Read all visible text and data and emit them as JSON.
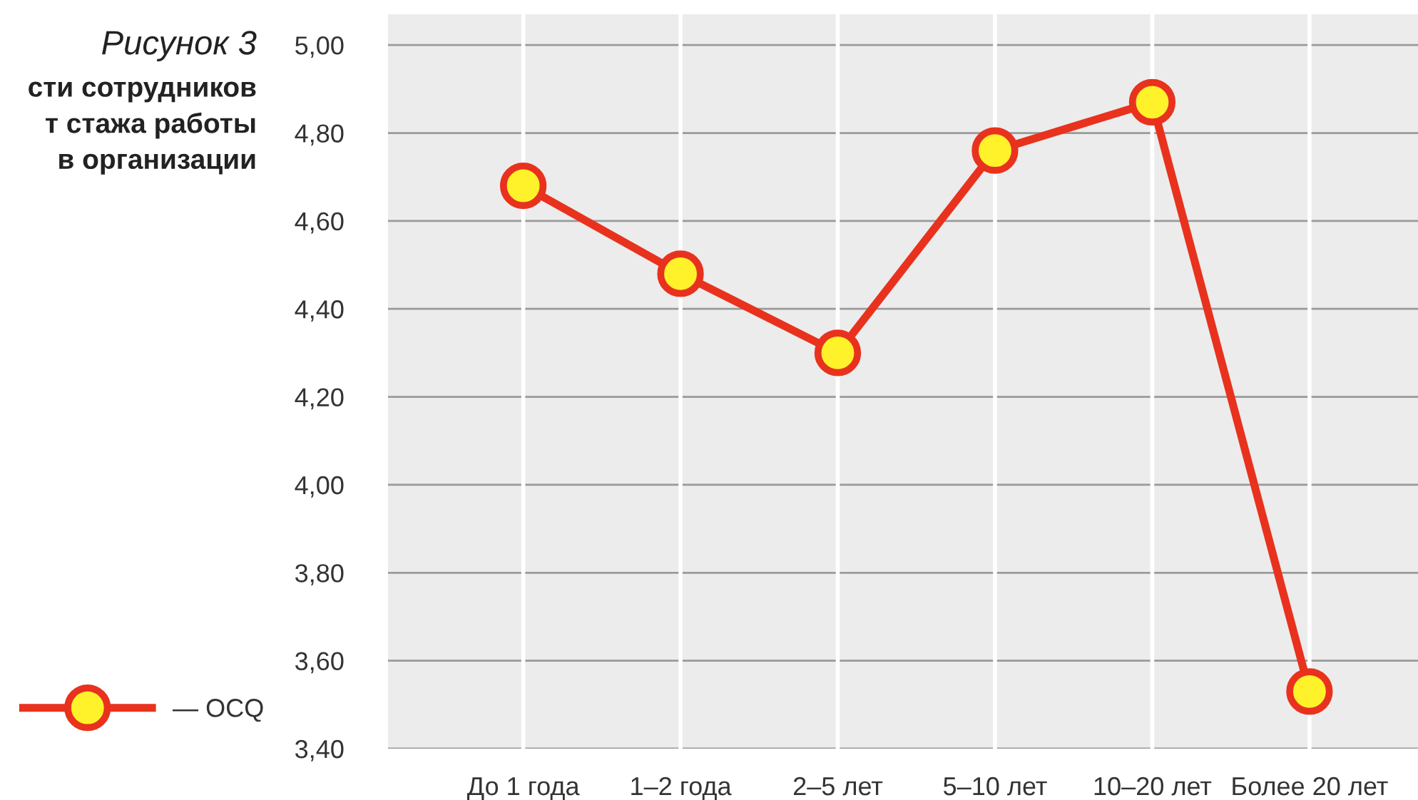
{
  "chart_data": {
    "type": "line",
    "title": "Рисунок 3",
    "subtitle": "сти сотрудников\nт стажа работы\nв организации",
    "categories": [
      "До 1 года",
      "1–2 года",
      "2–5 лет",
      "5–10 лет",
      "10–20 лет",
      "Более 20 лет"
    ],
    "series": [
      {
        "name": "— OCQ",
        "color": "#e8321e",
        "values": [
          4.68,
          4.48,
          4.3,
          4.76,
          4.87,
          3.53
        ]
      }
    ],
    "ylim": [
      3.4,
      5.07
    ],
    "yticks": [
      {
        "value": 3.4,
        "label": "3,40"
      },
      {
        "value": 3.6,
        "label": "3,60"
      },
      {
        "value": 3.8,
        "label": "3,80"
      },
      {
        "value": 4.0,
        "label": "4,00"
      },
      {
        "value": 4.2,
        "label": "4,20"
      },
      {
        "value": 4.4,
        "label": "4,40"
      },
      {
        "value": 4.6,
        "label": "4,60"
      },
      {
        "value": 4.8,
        "label": "4,80"
      },
      {
        "value": 5.0,
        "label": "5,00"
      }
    ],
    "grid": true,
    "legend": "bottom left",
    "marker": "circle",
    "line_style": "solid"
  }
}
